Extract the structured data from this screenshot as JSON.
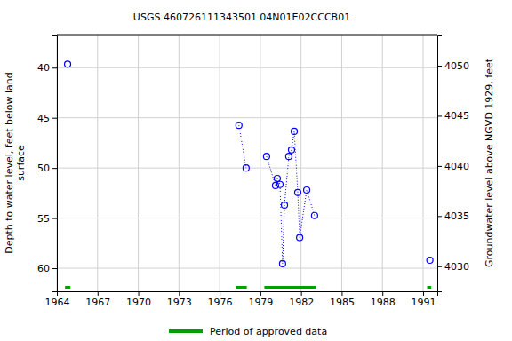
{
  "chart_data": {
    "type": "line",
    "title": "USGS 460726111343501 04N01E02CCCB01",
    "ylabel": "Depth to water level, feet below land\nsurface",
    "y2label": "Groundwater level above NGVD 1929, feet",
    "x": [
      1964.79,
      null,
      1977.42,
      1977.95,
      null,
      1979.46,
      1980.12,
      1980.25,
      1980.45,
      1980.64,
      1980.78,
      1981.1,
      1981.3,
      1981.5,
      1981.76,
      1981.9,
      1982.42,
      1983.0,
      null,
      1991.5
    ],
    "series": [
      {
        "name": "Depth to water level",
        "color": "#0000ff",
        "marker": "circle",
        "line_style": "dotted",
        "values": [
          39.65,
          null,
          45.75,
          50.0,
          null,
          48.85,
          51.75,
          51.05,
          51.65,
          59.55,
          53.7,
          48.85,
          48.2,
          46.35,
          52.45,
          56.95,
          52.2,
          54.75,
          null,
          59.2
        ]
      }
    ],
    "xlim": [
      1964.0,
      1992.05
    ],
    "xticks": [
      1964,
      1967,
      1970,
      1973,
      1976,
      1979,
      1982,
      1985,
      1988,
      1991
    ],
    "ylim": [
      62.3,
      36.7
    ],
    "yticks": [
      40,
      45,
      50,
      55,
      60
    ],
    "y2lim": [
      4027.5,
      4053.1
    ],
    "y2ticks": [
      4030,
      4035,
      4040,
      4045,
      4050
    ],
    "grid": true,
    "approved_periods": [
      [
        1964.6,
        1965.0
      ],
      [
        1977.2,
        1978.0
      ],
      [
        1979.3,
        1983.1
      ],
      [
        1991.3,
        1991.6
      ]
    ],
    "approved_label": "Period of approved data",
    "approved_color": "#00a000",
    "legend": "bottom"
  }
}
